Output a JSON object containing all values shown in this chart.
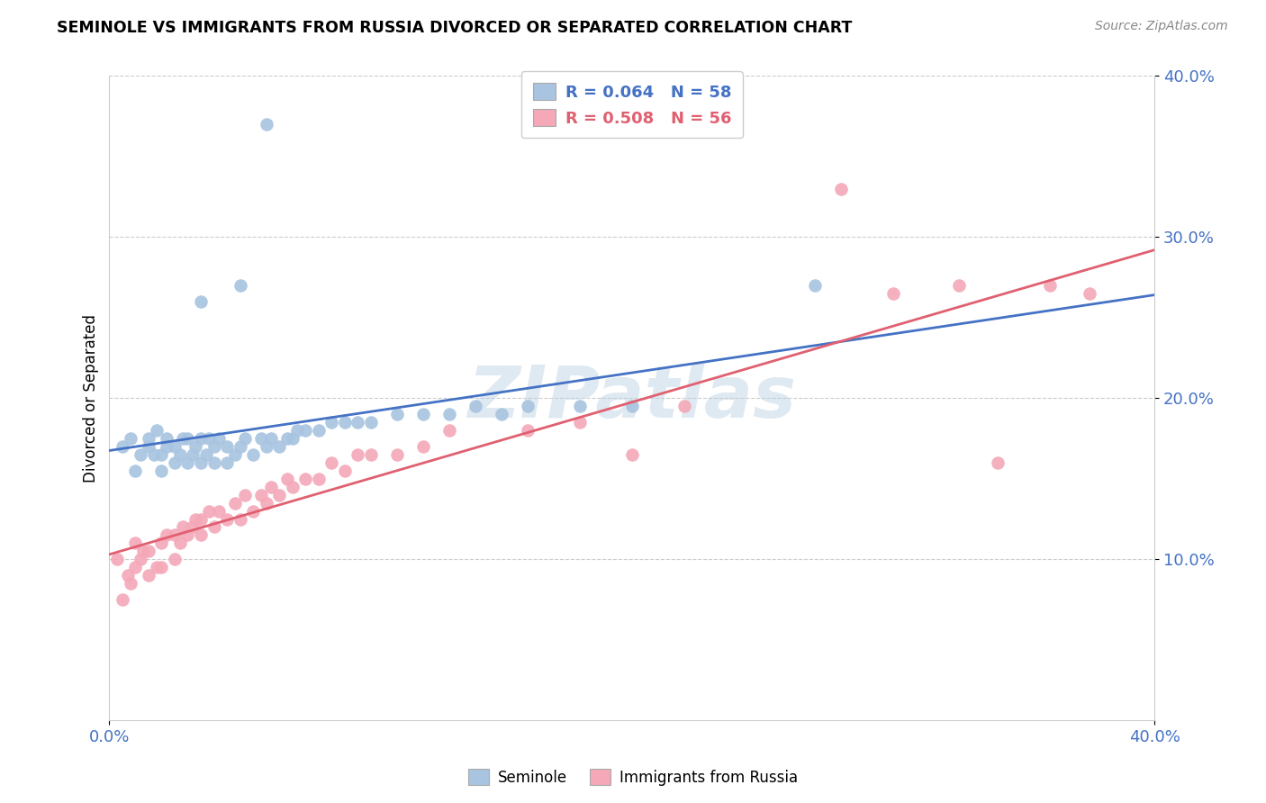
{
  "title": "SEMINOLE VS IMMIGRANTS FROM RUSSIA DIVORCED OR SEPARATED CORRELATION CHART",
  "source": "Source: ZipAtlas.com",
  "ylabel": "Divorced or Separated",
  "xlim": [
    0.0,
    0.4
  ],
  "ylim": [
    0.0,
    0.4
  ],
  "xtick_left": "0.0%",
  "xtick_right": "40.0%",
  "yticks": [
    0.1,
    0.2,
    0.3,
    0.4
  ],
  "ytick_labels": [
    "10.0%",
    "20.0%",
    "30.0%",
    "40.0%"
  ],
  "watermark": "ZIPatlas",
  "legend_blue_label": "R = 0.064   N = 58",
  "legend_pink_label": "R = 0.508   N = 56",
  "legend_bottom_blue": "Seminole",
  "legend_bottom_pink": "Immigrants from Russia",
  "blue_scatter_color": "#a8c4e0",
  "pink_scatter_color": "#f4a8b8",
  "blue_line_color": "#4472c4",
  "pink_line_color": "#e06070",
  "tick_color": "#4472c4",
  "background_color": "#ffffff",
  "grid_color": "#cccccc",
  "seminole_x": [
    0.005,
    0.008,
    0.01,
    0.012,
    0.015,
    0.015,
    0.017,
    0.018,
    0.02,
    0.02,
    0.022,
    0.022,
    0.025,
    0.025,
    0.027,
    0.028,
    0.03,
    0.03,
    0.032,
    0.033,
    0.035,
    0.035,
    0.037,
    0.038,
    0.04,
    0.04,
    0.042,
    0.045,
    0.045,
    0.048,
    0.05,
    0.052,
    0.055,
    0.058,
    0.06,
    0.062,
    0.065,
    0.068,
    0.07,
    0.072,
    0.075,
    0.08,
    0.085,
    0.09,
    0.095,
    0.1,
    0.11,
    0.12,
    0.13,
    0.14,
    0.15,
    0.16,
    0.18,
    0.2,
    0.035,
    0.05,
    0.06,
    0.27
  ],
  "seminole_y": [
    0.17,
    0.175,
    0.155,
    0.165,
    0.17,
    0.175,
    0.165,
    0.18,
    0.155,
    0.165,
    0.17,
    0.175,
    0.16,
    0.17,
    0.165,
    0.175,
    0.16,
    0.175,
    0.165,
    0.17,
    0.16,
    0.175,
    0.165,
    0.175,
    0.16,
    0.17,
    0.175,
    0.16,
    0.17,
    0.165,
    0.17,
    0.175,
    0.165,
    0.175,
    0.17,
    0.175,
    0.17,
    0.175,
    0.175,
    0.18,
    0.18,
    0.18,
    0.185,
    0.185,
    0.185,
    0.185,
    0.19,
    0.19,
    0.19,
    0.195,
    0.19,
    0.195,
    0.195,
    0.195,
    0.26,
    0.27,
    0.37,
    0.27
  ],
  "russia_x": [
    0.003,
    0.005,
    0.007,
    0.008,
    0.01,
    0.01,
    0.012,
    0.013,
    0.015,
    0.015,
    0.018,
    0.02,
    0.02,
    0.022,
    0.025,
    0.025,
    0.027,
    0.028,
    0.03,
    0.032,
    0.033,
    0.035,
    0.035,
    0.038,
    0.04,
    0.042,
    0.045,
    0.048,
    0.05,
    0.052,
    0.055,
    0.058,
    0.06,
    0.062,
    0.065,
    0.068,
    0.07,
    0.075,
    0.08,
    0.085,
    0.09,
    0.095,
    0.1,
    0.11,
    0.12,
    0.13,
    0.16,
    0.18,
    0.2,
    0.22,
    0.28,
    0.3,
    0.325,
    0.34,
    0.36,
    0.375
  ],
  "russia_y": [
    0.1,
    0.075,
    0.09,
    0.085,
    0.095,
    0.11,
    0.1,
    0.105,
    0.09,
    0.105,
    0.095,
    0.095,
    0.11,
    0.115,
    0.1,
    0.115,
    0.11,
    0.12,
    0.115,
    0.12,
    0.125,
    0.115,
    0.125,
    0.13,
    0.12,
    0.13,
    0.125,
    0.135,
    0.125,
    0.14,
    0.13,
    0.14,
    0.135,
    0.145,
    0.14,
    0.15,
    0.145,
    0.15,
    0.15,
    0.16,
    0.155,
    0.165,
    0.165,
    0.165,
    0.17,
    0.18,
    0.18,
    0.185,
    0.165,
    0.195,
    0.33,
    0.265,
    0.27,
    0.16,
    0.27,
    0.265
  ]
}
